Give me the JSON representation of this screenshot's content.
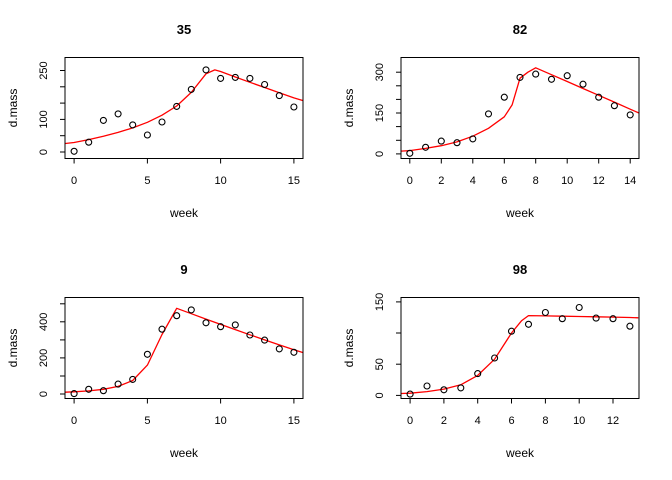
{
  "figure": {
    "background": "#ffffff",
    "point_color": "#000000",
    "fit_line_color": "#ff0000",
    "axis_color": "#000000"
  },
  "chart_data": [
    {
      "type": "scatter",
      "title": "35",
      "xlabel": "week",
      "ylabel": "d.mass",
      "x": [
        0,
        1,
        2,
        3,
        4,
        5,
        6,
        7,
        8,
        9,
        10,
        11,
        12,
        13,
        14,
        15
      ],
      "y": [
        2,
        30,
        97,
        117,
        83,
        52,
        92,
        140,
        192,
        252,
        226,
        229,
        226,
        207,
        173,
        138
      ],
      "fit_line": [
        [
          -0.6,
          26
        ],
        [
          0,
          29
        ],
        [
          1,
          38
        ],
        [
          2,
          48
        ],
        [
          3,
          60
        ],
        [
          4,
          74
        ],
        [
          5,
          91
        ],
        [
          6,
          113
        ],
        [
          7,
          141
        ],
        [
          8,
          183
        ],
        [
          9,
          240
        ],
        [
          9.6,
          252
        ],
        [
          10,
          247
        ],
        [
          11,
          230
        ],
        [
          12,
          214
        ],
        [
          13,
          198
        ],
        [
          14,
          182
        ],
        [
          15,
          166
        ],
        [
          15.6,
          158
        ]
      ],
      "xlim": [
        -0.62,
        15.62
      ],
      "ylim": [
        -20,
        290
      ],
      "xticks": [
        0,
        5,
        10,
        15
      ],
      "xtick_labels": [
        "0",
        "5",
        "10",
        "15"
      ],
      "yticks": [
        0,
        50,
        100,
        150,
        200,
        250
      ],
      "ytick_labels": [
        "0",
        "",
        "100",
        "",
        "",
        "250"
      ],
      "grid": false,
      "legend": null
    },
    {
      "type": "scatter",
      "title": "82",
      "xlabel": "week",
      "ylabel": "d.mass",
      "x": [
        0,
        1,
        2,
        3,
        4,
        5,
        6,
        7,
        8,
        9,
        10,
        11,
        12,
        13,
        14
      ],
      "y": [
        2,
        24,
        47,
        41,
        55,
        147,
        208,
        281,
        293,
        274,
        287,
        256,
        208,
        177,
        143
      ],
      "fit_line": [
        [
          -0.56,
          10
        ],
        [
          0,
          12
        ],
        [
          1,
          20
        ],
        [
          2,
          30
        ],
        [
          3,
          44
        ],
        [
          4,
          65
        ],
        [
          5,
          94
        ],
        [
          6,
          136
        ],
        [
          6.5,
          180
        ],
        [
          7,
          278
        ],
        [
          7.5,
          300
        ],
        [
          8,
          316
        ],
        [
          9,
          291
        ],
        [
          10,
          266
        ],
        [
          11,
          240
        ],
        [
          12,
          215
        ],
        [
          13,
          190
        ],
        [
          14,
          164
        ],
        [
          14.56,
          150
        ]
      ],
      "xlim": [
        -0.56,
        14.56
      ],
      "ylim": [
        -17,
        354
      ],
      "xticks": [
        0,
        2,
        4,
        6,
        8,
        10,
        12,
        14
      ],
      "xtick_labels": [
        "0",
        "2",
        "4",
        "6",
        "8",
        "10",
        "12",
        "14"
      ],
      "yticks": [
        0,
        50,
        100,
        150,
        200,
        250,
        300
      ],
      "ytick_labels": [
        "0",
        "",
        "",
        "150",
        "",
        "",
        "300"
      ],
      "grid": false,
      "legend": null
    },
    {
      "type": "scatter",
      "title": "9",
      "xlabel": "week",
      "ylabel": "d.mass",
      "x": [
        0,
        1,
        2,
        3,
        4,
        5,
        6,
        7,
        8,
        9,
        10,
        11,
        12,
        13,
        14,
        15
      ],
      "y": [
        2,
        26,
        18,
        55,
        81,
        220,
        359,
        434,
        466,
        395,
        373,
        383,
        327,
        299,
        250,
        231
      ],
      "fit_line": [
        [
          -0.6,
          10
        ],
        [
          0,
          12
        ],
        [
          1,
          17
        ],
        [
          2,
          26
        ],
        [
          3,
          42
        ],
        [
          4,
          75
        ],
        [
          5,
          160
        ],
        [
          6,
          330
        ],
        [
          7,
          475
        ],
        [
          8,
          445
        ],
        [
          9,
          415
        ],
        [
          10,
          386
        ],
        [
          11,
          357
        ],
        [
          12,
          328
        ],
        [
          13,
          300
        ],
        [
          14,
          272
        ],
        [
          15,
          245
        ],
        [
          15.6,
          230
        ]
      ],
      "xlim": [
        -0.62,
        15.62
      ],
      "ylim": [
        -25,
        535
      ],
      "xticks": [
        0,
        5,
        10,
        15
      ],
      "xtick_labels": [
        "0",
        "5",
        "10",
        "15"
      ],
      "yticks": [
        0,
        100,
        200,
        300,
        400,
        500
      ],
      "ytick_labels": [
        "0",
        "",
        "200",
        "",
        "400",
        ""
      ],
      "grid": false,
      "legend": null
    },
    {
      "type": "scatter",
      "title": "98",
      "xlabel": "week",
      "ylabel": "d.mass",
      "x": [
        0,
        1,
        2,
        3,
        4,
        5,
        6,
        7,
        8,
        9,
        10,
        11,
        12,
        13
      ],
      "y": [
        2,
        15,
        9,
        12,
        35,
        60,
        103,
        114,
        133,
        123,
        141,
        124,
        123,
        111
      ],
      "fit_line": [
        [
          -0.52,
          3
        ],
        [
          0,
          3.5
        ],
        [
          1,
          6
        ],
        [
          2,
          10
        ],
        [
          3,
          17
        ],
        [
          4,
          32
        ],
        [
          5,
          58
        ],
        [
          6,
          100
        ],
        [
          6.6,
          120
        ],
        [
          7,
          128
        ],
        [
          8,
          127.5
        ],
        [
          9,
          127
        ],
        [
          10,
          126.5
        ],
        [
          11,
          126
        ],
        [
          12,
          125.5
        ],
        [
          13,
          125
        ],
        [
          13.5,
          124.5
        ]
      ],
      "xlim": [
        -0.54,
        13.54
      ],
      "ylim": [
        -5,
        157
      ],
      "xticks": [
        0,
        2,
        4,
        6,
        8,
        10,
        12
      ],
      "xtick_labels": [
        "0",
        "2",
        "4",
        "6",
        "8",
        "10",
        "12"
      ],
      "yticks": [
        0,
        50,
        100,
        150
      ],
      "ytick_labels": [
        "0",
        "50",
        "",
        "150"
      ],
      "grid": false,
      "legend": null
    }
  ]
}
